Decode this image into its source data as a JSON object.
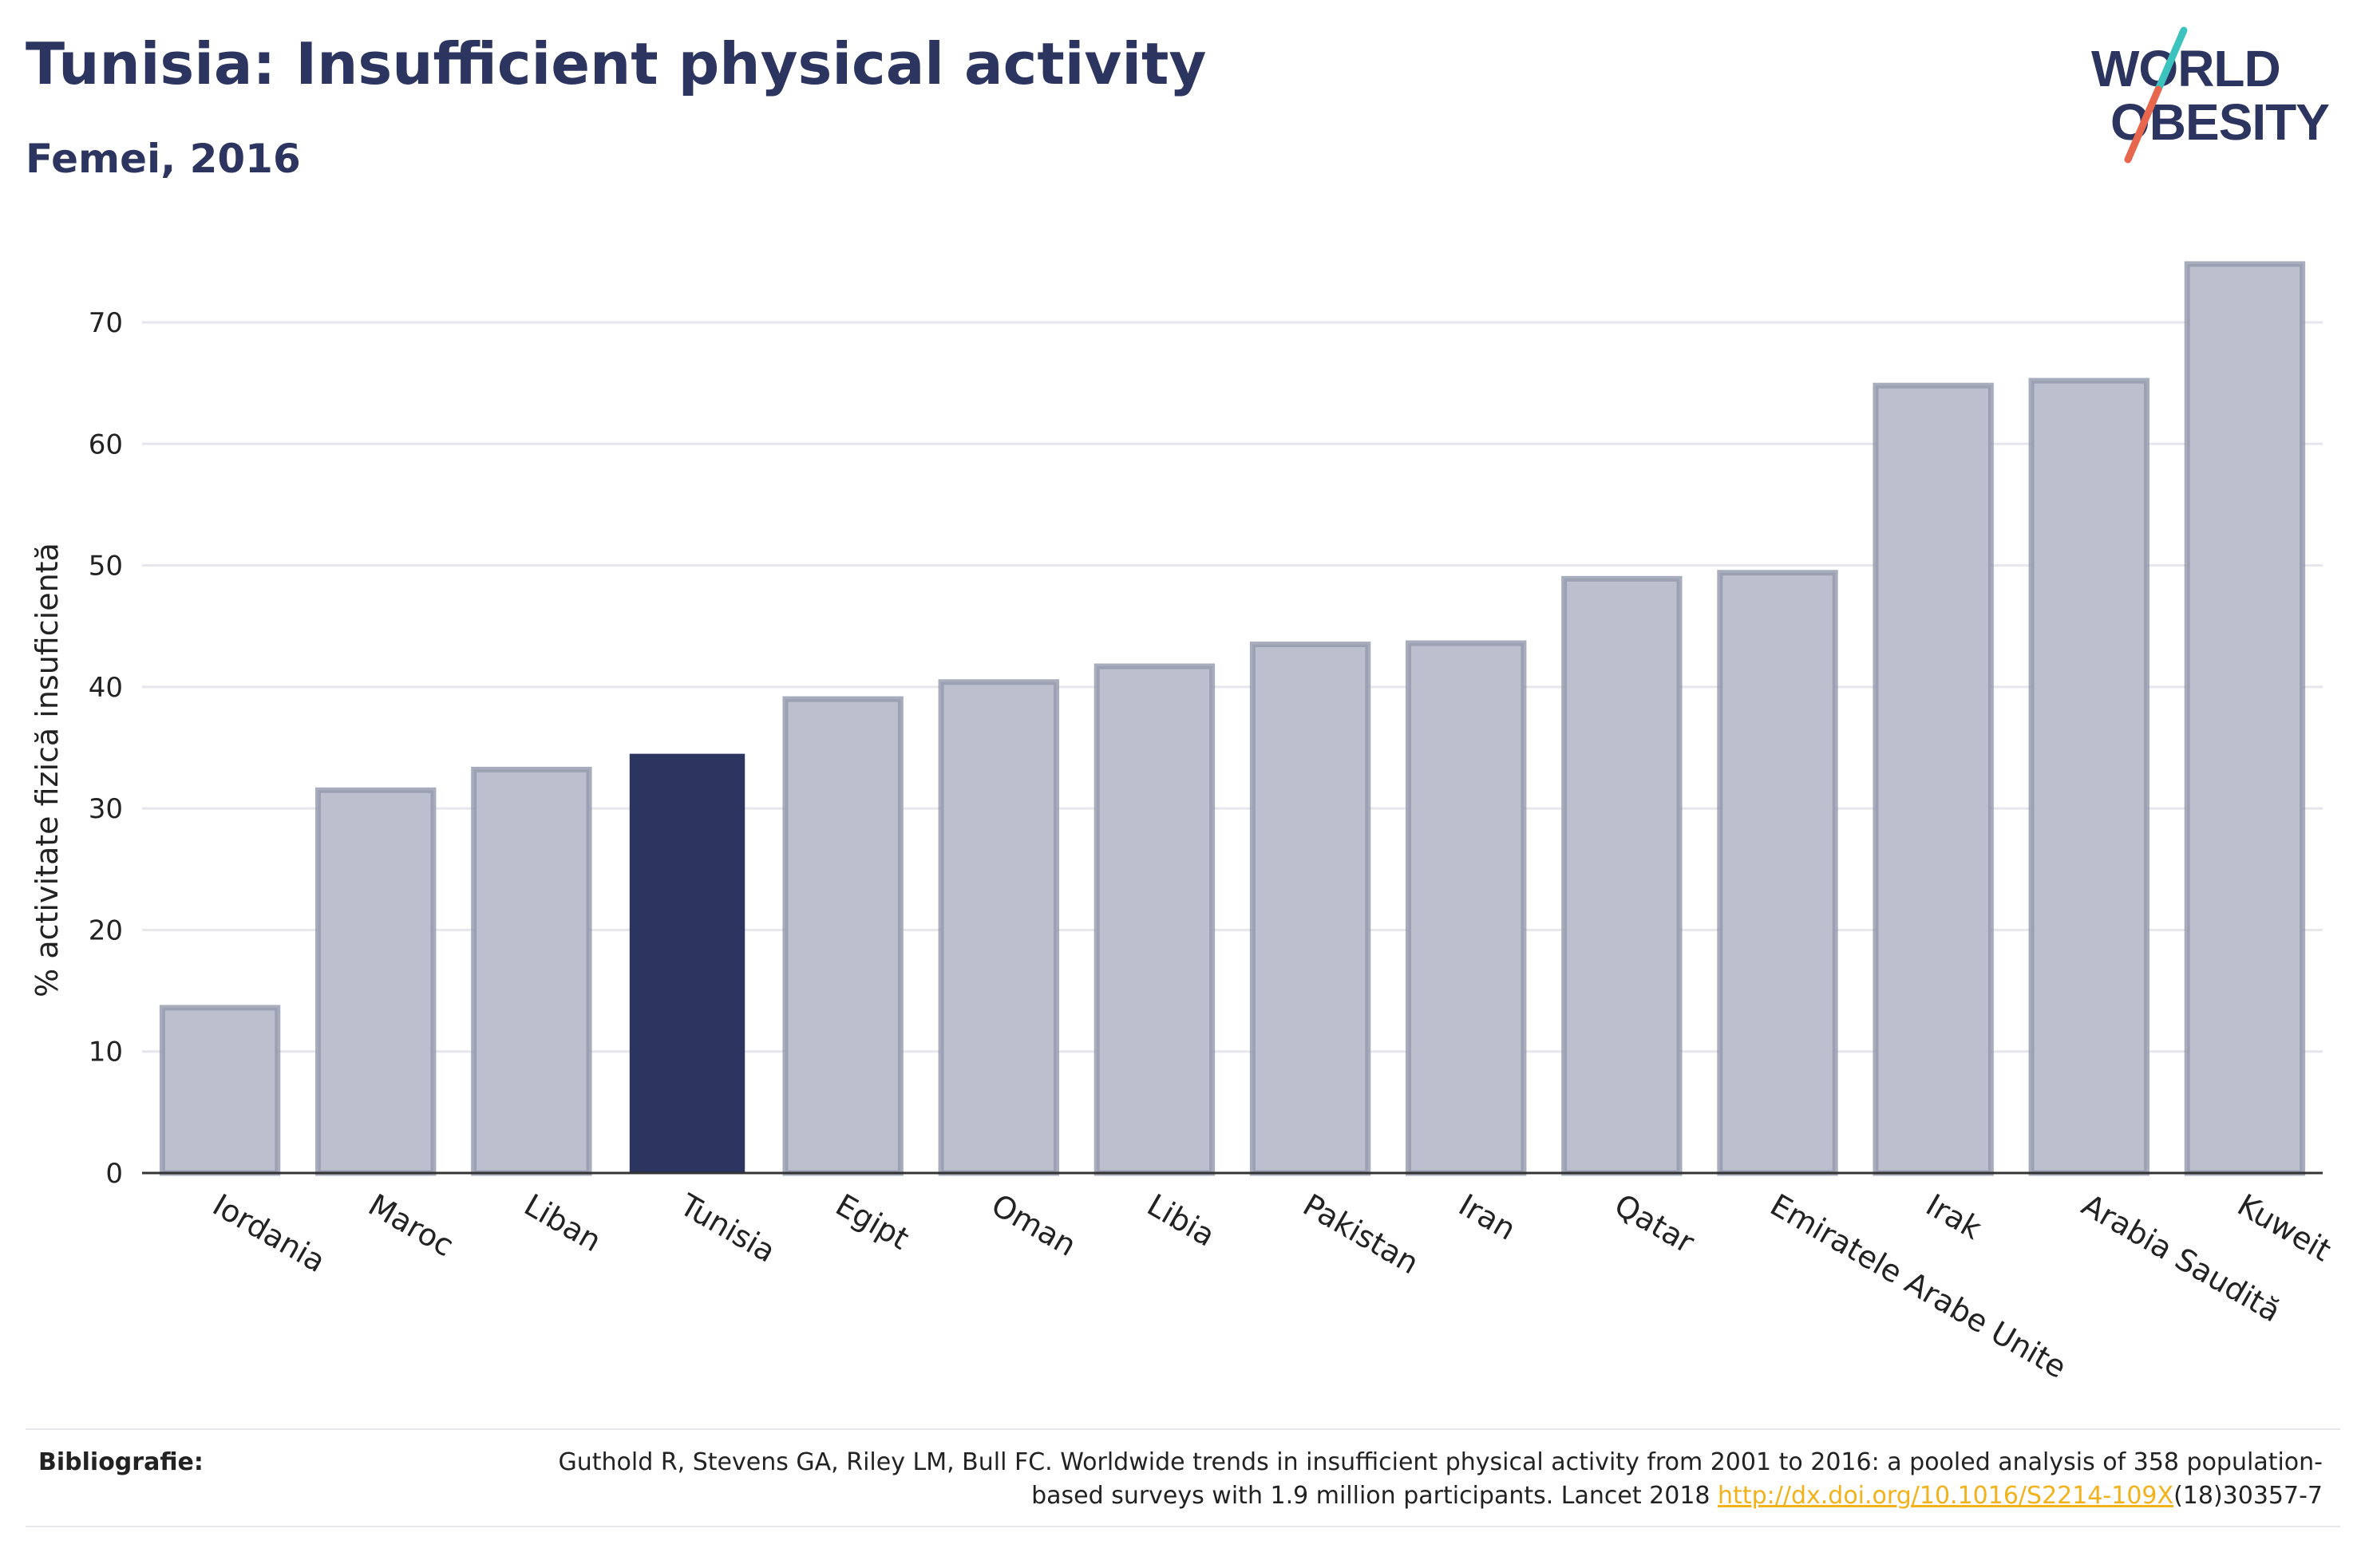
{
  "header": {
    "title": "Tunisia: Insufficient physical activity",
    "subtitle": "Femei, 2016"
  },
  "logo": {
    "line1": "WORLD",
    "line2": "OBESITY",
    "text_color": "#2b3560",
    "slash_colors": [
      "#3cc3bd",
      "#e8664d"
    ]
  },
  "chart_data": {
    "type": "bar",
    "categories": [
      "Iordania",
      "Maroc",
      "Liban",
      "Tunisia",
      "Egipt",
      "Oman",
      "Libia",
      "Pakistan",
      "Iran",
      "Qatar",
      "Emiratele Arabe Unite",
      "Irak",
      "Arabia Saudită",
      "Kuweit"
    ],
    "values": [
      13.6,
      31.5,
      33.2,
      34.5,
      39,
      40.4,
      41.7,
      43.5,
      43.6,
      48.9,
      49.4,
      64.8,
      65.2,
      74.8
    ],
    "highlight": "Tunisia",
    "title": "",
    "xlabel": "",
    "ylabel": "% activitate fizică insuficientă",
    "ylim": [
      0,
      75
    ],
    "yticks": [
      0,
      10,
      20,
      30,
      40,
      50,
      60,
      70
    ],
    "grid": true,
    "colors": {
      "bar": "#bcc0ce",
      "bar_border": "#9298ad",
      "highlight": "#2b3560",
      "grid": "#e6e6ec",
      "axis": "#333333"
    }
  },
  "footer": {
    "label": "Bibliografie:",
    "text_before": "Guthold R, Stevens GA, Riley LM, Bull FC. Worldwide trends in insufficient physical activity from 2001 to 2016: a pooled analysis of 358 population-based surveys with 1.9 million participants. Lancet 2018 ",
    "link": "http://dx.doi.org/10.1016/S2214-109X",
    "text_after": "(18)30357-7"
  }
}
